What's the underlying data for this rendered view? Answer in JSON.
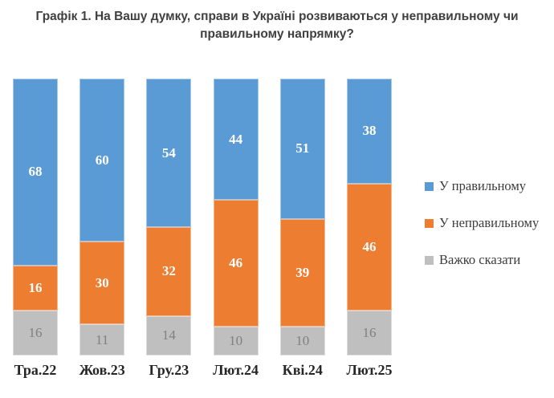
{
  "title": "Графік 1. На Вашу думку, справи в Україні розвиваються у неправильному чи правильному напрямку?",
  "colors": {
    "right_direction": "#5B9BD5",
    "wrong_direction": "#ED7D31",
    "hard_to_say": "#BFBFBF",
    "title_text": "#404040",
    "axis_label_text": "#262626",
    "gray_value_text": "#808080",
    "background": "#FFFFFF"
  },
  "legend": {
    "position": "right",
    "items": [
      {
        "label": "У правильному",
        "color": "#5B9BD5"
      },
      {
        "label": "У неправильному",
        "color": "#ED7D31"
      },
      {
        "label": "Важко сказати",
        "color": "#BFBFBF"
      }
    ]
  },
  "chart_data": {
    "type": "bar",
    "stacked": true,
    "percent_stacked": true,
    "title": "Графік 1. На Вашу думку, справи в Україні розвиваються у неправильному чи правильному напрямку?",
    "categories": [
      "Тра.22",
      "Жов.23",
      "Гру.23",
      "Лют.24",
      "Кві.24",
      "Лют.25"
    ],
    "series": [
      {
        "name": "У правильному",
        "color": "#5B9BD5",
        "values": [
          68,
          60,
          54,
          44,
          51,
          38
        ]
      },
      {
        "name": "У неправильному",
        "color": "#ED7D31",
        "values": [
          16,
          30,
          32,
          46,
          39,
          46
        ]
      },
      {
        "name": "Важко сказати",
        "color": "#BFBFBF",
        "values": [
          16,
          11,
          14,
          10,
          10,
          16
        ]
      }
    ],
    "xlabel": "",
    "ylabel": "",
    "grid": false,
    "legend_position": "right",
    "value_labels_shown": true
  }
}
